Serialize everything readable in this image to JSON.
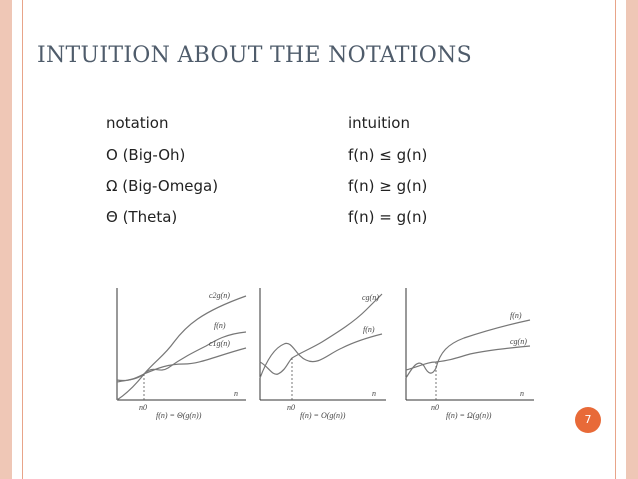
{
  "slide": {
    "title": "INTUITION ABOUT THE NOTATIONS",
    "page_number": "7",
    "accent_color": "#e86a38",
    "edge_color": "#efc7b6"
  },
  "table": {
    "headers": {
      "notation": "notation",
      "intuition": "intuition"
    },
    "rows": [
      {
        "notation": "O (Big-Oh)",
        "intuition": "f(n) ≤ g(n)"
      },
      {
        "notation": "Ω (Big-Omega)",
        "intuition": "f(n) ≥ g(n)"
      },
      {
        "notation": "Θ (Theta)",
        "intuition": "f(n) = g(n)"
      }
    ]
  },
  "graphs": [
    {
      "curves": [
        "c2g(n)",
        "f(n)",
        "c1g(n)"
      ],
      "axis_x": "n",
      "n0": "n0",
      "caption": "f(n) = Θ(g(n))"
    },
    {
      "curves": [
        "cg(n)",
        "f(n)"
      ],
      "axis_x": "n",
      "n0": "n0",
      "caption": "f(n) = O(g(n))"
    },
    {
      "curves": [
        "f(n)",
        "cg(n)"
      ],
      "axis_x": "n",
      "n0": "n0",
      "caption": "f(n) = Ω(g(n))"
    }
  ]
}
